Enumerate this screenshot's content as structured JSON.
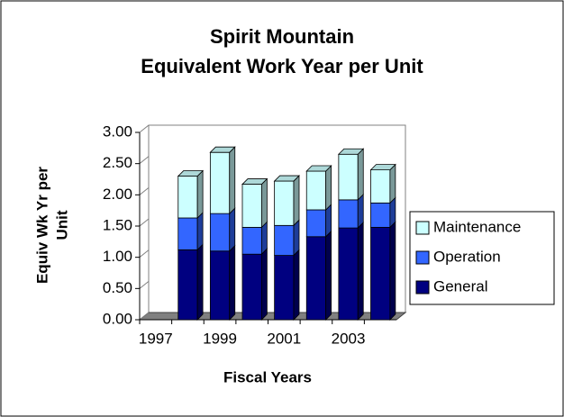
{
  "chart_data": {
    "type": "bar",
    "stacked": true,
    "title": "Spirit Mountain",
    "subtitle": "Equivalent Work Year per Unit",
    "xlabel": "Fiscal Years",
    "ylabel": [
      "Equiv Wk Yr per",
      "Unit"
    ],
    "categories": [
      "1997",
      null,
      "1999",
      null,
      "2001",
      null,
      "2003",
      null
    ],
    "series": [
      {
        "name": "General",
        "color": "#000080",
        "values": [
          null,
          1.12,
          1.1,
          1.05,
          1.03,
          1.33,
          1.47,
          1.48
        ]
      },
      {
        "name": "Operation",
        "color": "#3366ff",
        "values": [
          null,
          0.51,
          0.6,
          0.43,
          0.48,
          0.43,
          0.45,
          0.39
        ]
      },
      {
        "name": "Maintenance",
        "color": "#ccffff",
        "values": [
          null,
          0.67,
          0.98,
          0.69,
          0.71,
          0.62,
          0.73,
          0.53
        ]
      }
    ],
    "ylim": [
      0,
      3
    ],
    "yticks": [
      {
        "value": 0,
        "label": "0.00"
      },
      {
        "value": 0.5,
        "label": "0.50"
      },
      {
        "value": 1,
        "label": "1.00"
      },
      {
        "value": 1.5,
        "label": "1.50"
      },
      {
        "value": 2,
        "label": "2.00"
      },
      {
        "value": 2.5,
        "label": "2.50"
      },
      {
        "value": 3,
        "label": "3.00"
      }
    ],
    "legend": "right"
  }
}
